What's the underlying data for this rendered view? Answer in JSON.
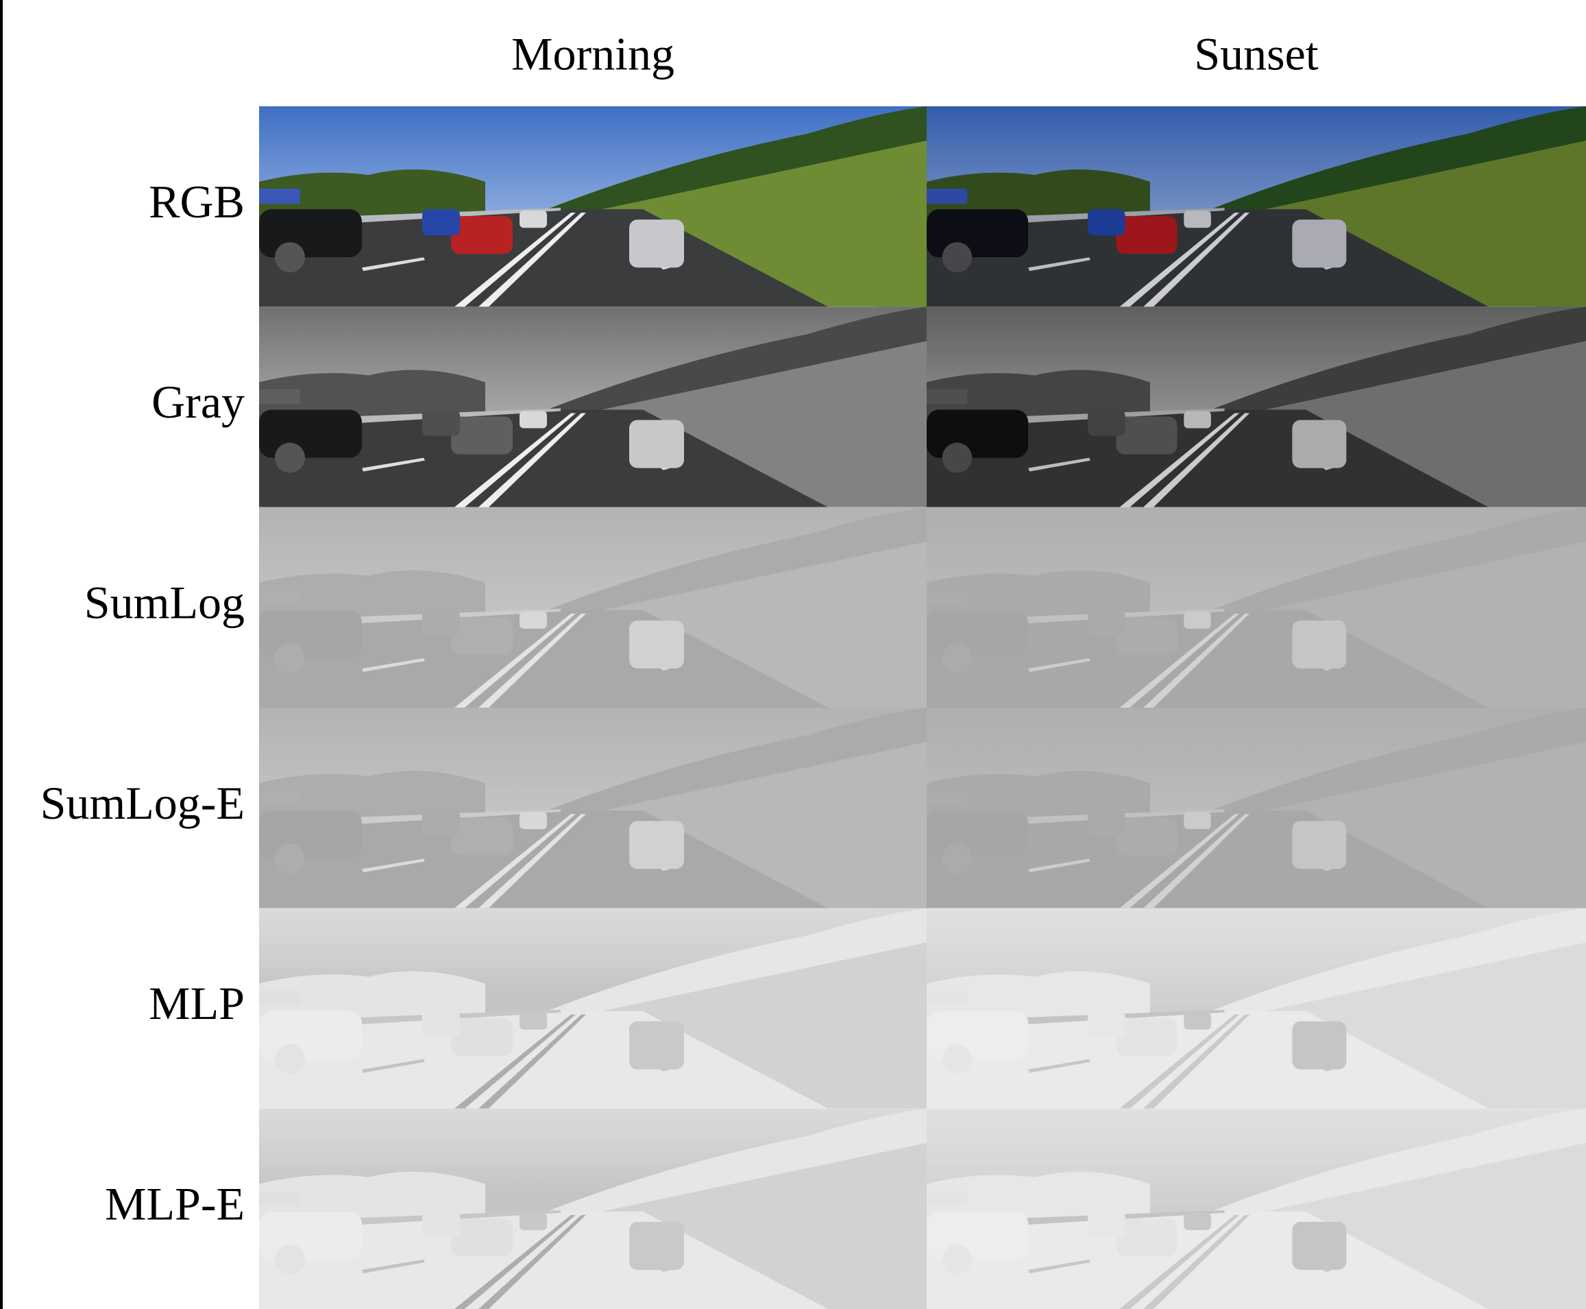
{
  "columns": [
    "Morning",
    "Sunset"
  ],
  "rows": [
    "RGB",
    "Gray",
    "SumLog",
    "SumLog-E",
    "MLP",
    "MLP-E"
  ]
}
